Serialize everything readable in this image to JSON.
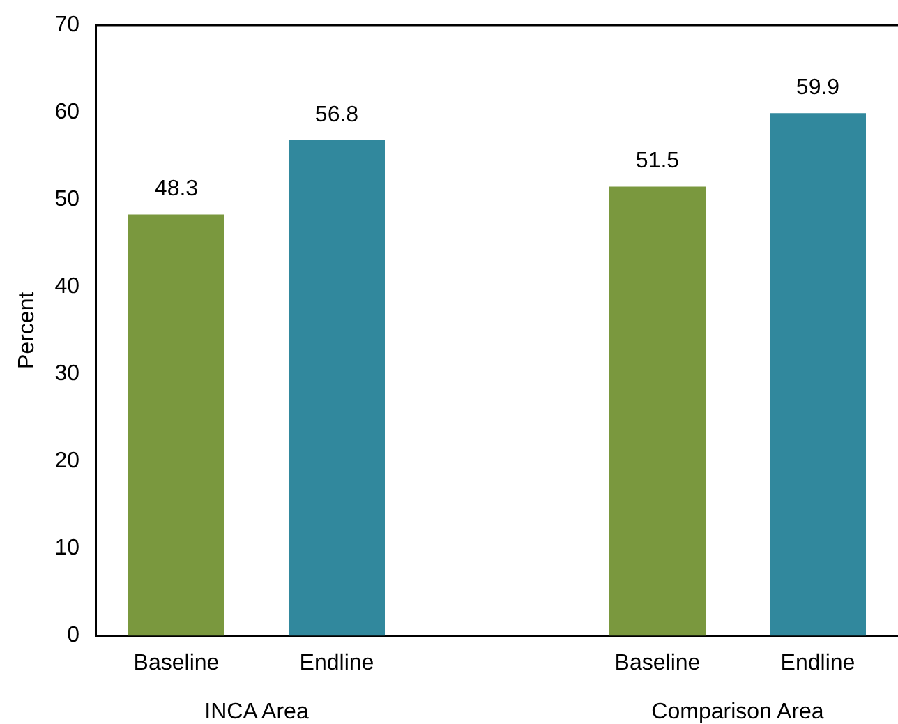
{
  "chart_data": {
    "type": "bar",
    "ylabel": "Percent",
    "categories": [
      "Baseline",
      "Endline",
      null,
      "Baseline",
      "Endline"
    ],
    "values": [
      48.3,
      56.8,
      null,
      51.5,
      59.9
    ],
    "colors": [
      "#7a983e",
      "#31889d",
      "#7a983e",
      "#7a983e",
      "#31889d"
    ],
    "ylim": [
      0,
      70
    ],
    "yticks": [
      0,
      10,
      20,
      30,
      40,
      50,
      60,
      70
    ],
    "grid": false,
    "legend": false,
    "data_labels": true,
    "annotations": [
      "INCA Area",
      "Comparison Area"
    ]
  }
}
